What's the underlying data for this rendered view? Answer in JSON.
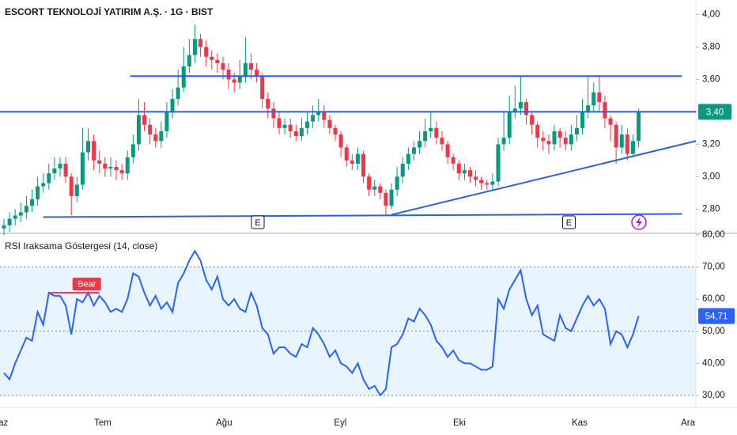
{
  "chart_data": [
    {
      "type": "candlestick",
      "title": "ESCORT TEKNOLOJİ YATIRIM A.Ş. · 1G · BIST",
      "open": [
        2.68,
        2.7,
        2.74,
        2.76,
        2.78,
        2.82,
        2.86,
        2.94,
        2.96,
        3.02,
        3.05,
        3.08,
        3.0,
        2.88,
        2.95,
        3.15,
        3.22,
        3.1,
        3.08,
        3.05,
        3.06,
        3.04,
        3.02,
        3.12,
        3.2,
        3.38,
        3.32,
        3.26,
        3.22,
        3.28,
        3.4,
        3.48,
        3.55,
        3.68,
        3.75,
        3.85,
        3.8,
        3.74,
        3.72,
        3.7,
        3.66,
        3.6,
        3.58,
        3.62,
        3.7,
        3.66,
        3.62,
        3.48,
        3.42,
        3.36,
        3.3,
        3.32,
        3.28,
        3.25,
        3.3,
        3.34,
        3.38,
        3.4,
        3.35,
        3.3,
        3.26,
        3.18,
        3.1,
        3.08,
        3.14,
        3.0,
        2.92,
        2.94,
        2.9,
        2.82,
        2.92,
        3.0,
        3.08,
        3.14,
        3.18,
        3.22,
        3.28,
        3.3,
        3.24,
        3.2,
        3.12,
        3.08,
        3.02,
        3.04,
        3.0,
        2.98,
        2.96,
        2.95,
        2.97,
        3.2,
        3.24,
        3.4,
        3.42,
        3.46,
        3.38,
        3.32,
        3.24,
        3.22,
        3.2,
        3.28,
        3.24,
        3.2,
        3.26,
        3.3,
        3.4,
        3.44,
        3.52,
        3.46,
        3.36,
        3.32,
        3.18,
        3.26,
        3.14,
        3.22
      ],
      "high": [
        2.74,
        2.78,
        2.8,
        2.84,
        2.88,
        2.92,
        3.0,
        3.02,
        3.08,
        3.12,
        3.12,
        3.12,
        3.02,
        3.0,
        3.3,
        3.3,
        3.26,
        3.16,
        3.12,
        3.12,
        3.1,
        3.08,
        3.16,
        3.26,
        3.48,
        3.46,
        3.36,
        3.3,
        3.34,
        3.46,
        3.54,
        3.66,
        3.8,
        3.85,
        3.94,
        3.88,
        3.84,
        3.78,
        3.76,
        3.74,
        3.7,
        3.64,
        3.72,
        3.86,
        3.76,
        3.7,
        3.64,
        3.52,
        3.46,
        3.4,
        3.36,
        3.36,
        3.32,
        3.36,
        3.4,
        3.44,
        3.48,
        3.44,
        3.38,
        3.32,
        3.28,
        3.2,
        3.14,
        3.18,
        3.16,
        3.02,
        2.98,
        2.96,
        2.92,
        2.96,
        3.06,
        3.12,
        3.18,
        3.22,
        3.28,
        3.36,
        3.4,
        3.34,
        3.28,
        3.22,
        3.14,
        3.1,
        3.08,
        3.06,
        3.04,
        3.0,
        2.98,
        3.02,
        3.24,
        3.4,
        3.5,
        3.56,
        3.62,
        3.48,
        3.4,
        3.34,
        3.28,
        3.26,
        3.32,
        3.3,
        3.28,
        3.32,
        3.38,
        3.48,
        3.62,
        3.58,
        3.62,
        3.5,
        3.38,
        3.34,
        3.32,
        3.3,
        3.26,
        3.42
      ],
      "low": [
        2.64,
        2.66,
        2.7,
        2.72,
        2.74,
        2.78,
        2.82,
        2.9,
        2.92,
        2.98,
        3.0,
        2.96,
        2.76,
        2.84,
        2.92,
        3.1,
        3.04,
        3.02,
        3.0,
        3.0,
        2.98,
        2.98,
        2.98,
        3.08,
        3.16,
        3.28,
        3.2,
        3.18,
        3.18,
        3.24,
        3.36,
        3.44,
        3.52,
        3.64,
        3.7,
        3.74,
        3.68,
        3.66,
        3.64,
        3.6,
        3.54,
        3.52,
        3.54,
        3.58,
        3.6,
        3.58,
        3.42,
        3.36,
        3.3,
        3.26,
        3.26,
        3.24,
        3.22,
        3.22,
        3.26,
        3.3,
        3.34,
        3.3,
        3.26,
        3.22,
        3.12,
        3.06,
        3.04,
        3.04,
        2.96,
        2.88,
        2.88,
        2.86,
        2.76,
        2.8,
        2.88,
        2.96,
        3.04,
        3.1,
        3.14,
        3.18,
        3.24,
        3.2,
        3.16,
        3.08,
        3.04,
        2.98,
        2.98,
        2.96,
        2.94,
        2.92,
        2.92,
        2.92,
        2.94,
        3.16,
        3.2,
        3.36,
        3.38,
        3.32,
        3.26,
        3.18,
        3.16,
        3.14,
        3.16,
        3.18,
        3.16,
        3.16,
        3.22,
        3.26,
        3.36,
        3.4,
        3.4,
        3.3,
        3.22,
        3.08,
        3.14,
        3.1,
        3.12,
        3.18
      ],
      "close": [
        2.7,
        2.74,
        2.76,
        2.78,
        2.82,
        2.86,
        2.94,
        2.96,
        3.02,
        3.05,
        3.08,
        3.0,
        2.88,
        2.95,
        3.15,
        3.22,
        3.1,
        3.08,
        3.05,
        3.06,
        3.04,
        3.02,
        3.12,
        3.2,
        3.38,
        3.32,
        3.26,
        3.22,
        3.28,
        3.4,
        3.48,
        3.55,
        3.68,
        3.75,
        3.85,
        3.8,
        3.74,
        3.72,
        3.7,
        3.66,
        3.6,
        3.58,
        3.62,
        3.7,
        3.66,
        3.62,
        3.48,
        3.42,
        3.36,
        3.3,
        3.32,
        3.28,
        3.25,
        3.3,
        3.34,
        3.38,
        3.4,
        3.35,
        3.3,
        3.26,
        3.18,
        3.1,
        3.08,
        3.14,
        3.0,
        2.92,
        2.94,
        2.9,
        2.82,
        2.92,
        3.0,
        3.08,
        3.14,
        3.18,
        3.22,
        3.28,
        3.3,
        3.24,
        3.2,
        3.12,
        3.08,
        3.02,
        3.04,
        3.0,
        2.98,
        2.96,
        2.95,
        2.97,
        3.2,
        3.24,
        3.4,
        3.42,
        3.46,
        3.38,
        3.32,
        3.24,
        3.22,
        3.2,
        3.28,
        3.24,
        3.2,
        3.26,
        3.3,
        3.4,
        3.44,
        3.52,
        3.46,
        3.36,
        3.32,
        3.18,
        3.26,
        3.14,
        3.22,
        3.4
      ],
      "up_color": "#089981",
      "down_color": "#f23645",
      "xlim": [
        -0.7,
        123.2
      ],
      "ylim": [
        2.66,
        4.09
      ],
      "yticks": [
        {
          "value": 4.0,
          "label": "4,00"
        },
        {
          "value": 3.8,
          "label": "3,80"
        },
        {
          "value": 3.6,
          "label": "3,60"
        },
        {
          "value": 3.4,
          "label": "3,40"
        },
        {
          "value": 3.2,
          "label": "3,20"
        },
        {
          "value": 3.0,
          "label": "3,00"
        },
        {
          "value": 2.8,
          "label": "2,80"
        }
      ],
      "last_price": {
        "value": 3.4,
        "label": "3,40"
      },
      "lines": [
        {
          "x": [
            22.5,
            120.7
          ],
          "y": [
            3.62,
            3.62
          ]
        },
        {
          "x": [
            -0.7,
            123.2
          ],
          "y": [
            3.4,
            3.4
          ]
        },
        {
          "x": [
            7,
            120.7
          ],
          "y": [
            2.75,
            2.77
          ]
        },
        {
          "x": [
            69,
            123.2
          ],
          "y": [
            2.765,
            3.22
          ]
        }
      ],
      "line_color": "#2f5ee0",
      "events": [
        {
          "label": "E",
          "x": 45.2
        },
        {
          "label": "E",
          "x": 100.6
        }
      ]
    },
    {
      "type": "line",
      "title": "RSI Iraksama Göstergesi (14, close)",
      "values": [
        37,
        35,
        40,
        44,
        48,
        47,
        56,
        52,
        62,
        61,
        61,
        58,
        49,
        60,
        59,
        62,
        58,
        61,
        59,
        56,
        57,
        56,
        60,
        68,
        67,
        62,
        58,
        61,
        57,
        59,
        56,
        65,
        68,
        72,
        75,
        72,
        66,
        63,
        67,
        60,
        58,
        60,
        57,
        56,
        62,
        58,
        51,
        49,
        43,
        45,
        45,
        43,
        42,
        46,
        45,
        51,
        49,
        46,
        42,
        44,
        40,
        39,
        37,
        40,
        35,
        32,
        33,
        30,
        32,
        45,
        46,
        49,
        54,
        53,
        57,
        55,
        52,
        47,
        45,
        42,
        44,
        41,
        40,
        40,
        39,
        38,
        38,
        39,
        60,
        57,
        63,
        66,
        69,
        60,
        55,
        58,
        49,
        48,
        47,
        55,
        51,
        50,
        54,
        58,
        61,
        58,
        60,
        57,
        46,
        50,
        49,
        45,
        49,
        54.71
      ],
      "color": "#2962ff",
      "xlim": [
        -0.7,
        123.2
      ],
      "ylim": [
        26.3,
        80
      ],
      "yticks": [
        {
          "value": 80,
          "label": "80,00"
        },
        {
          "value": 70,
          "label": "70,00"
        },
        {
          "value": 60,
          "label": "60,00"
        },
        {
          "value": 50,
          "label": "50,00"
        },
        {
          "value": 40,
          "label": "40,00"
        },
        {
          "value": 30,
          "label": "30,00"
        }
      ],
      "band": [
        30,
        70
      ],
      "levels": [
        70,
        50,
        30
      ],
      "last_value": {
        "value": 54.71,
        "label": "54,71"
      },
      "divergence": {
        "label": "Bear",
        "x": [
          8,
          17
        ],
        "y": [
          62,
          62
        ],
        "color": "#f23645"
      },
      "xticks": [
        {
          "value": -0.7,
          "label": "Haz"
        },
        {
          "value": 17.6,
          "label": "Tem"
        },
        {
          "value": 39.2,
          "label": "Ağu"
        },
        {
          "value": 59.9,
          "label": "Eyl"
        },
        {
          "value": 81.1,
          "label": "Eki"
        },
        {
          "value": 102.5,
          "label": "Kas"
        },
        {
          "value": 121.8,
          "label": "Ara"
        }
      ]
    }
  ]
}
